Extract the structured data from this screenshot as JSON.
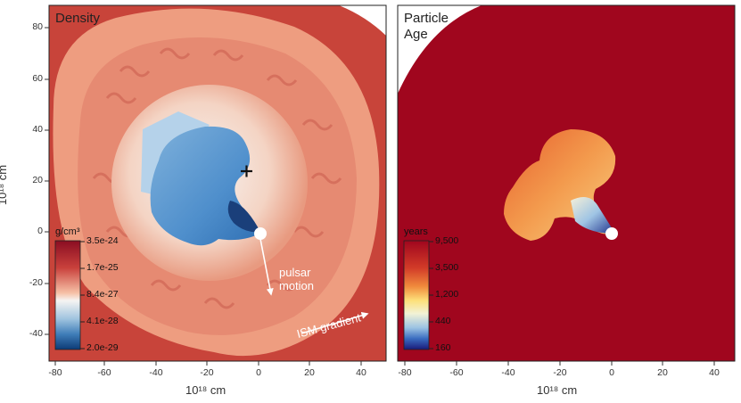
{
  "panels": [
    {
      "title": "Density",
      "x_label": "10¹⁸ cm",
      "y_label": "10¹⁸ cm",
      "x_ticks": [
        "-80",
        "-60",
        "-40",
        "-20",
        "0",
        "20",
        "40"
      ],
      "y_ticks": [
        "80",
        "60",
        "40",
        "20",
        "0",
        "-20",
        "-40"
      ],
      "colorbar": {
        "unit": "g/cm³",
        "ticks": [
          "3.5e-24",
          "1.7e-25",
          "8.4e-27",
          "4.1e-28",
          "2.0e-29"
        ],
        "colors": [
          "#8b0d22",
          "#c9413c",
          "#f6b89c",
          "#f6f4f2",
          "#a8c8e0",
          "#3f7db8",
          "#0c3a76"
        ]
      },
      "annotations": {
        "pulsar_motion": "pulsar\nmotion",
        "ism_gradient": "ISM gradient"
      }
    },
    {
      "title": "Particle\nAge",
      "x_label": "10¹⁸ cm",
      "x_ticks": [
        "-80",
        "-60",
        "-40",
        "-20",
        "0",
        "20",
        "40"
      ],
      "colorbar": {
        "unit": "years",
        "ticks": [
          "9,500",
          "3,500",
          "1,200",
          "440",
          "160"
        ],
        "colors": [
          "#a0061e",
          "#d23b28",
          "#f08a3c",
          "#fde07a",
          "#f2f2d6",
          "#9cc3e3",
          "#3a6cc0",
          "#1a1a7a"
        ]
      }
    }
  ]
}
